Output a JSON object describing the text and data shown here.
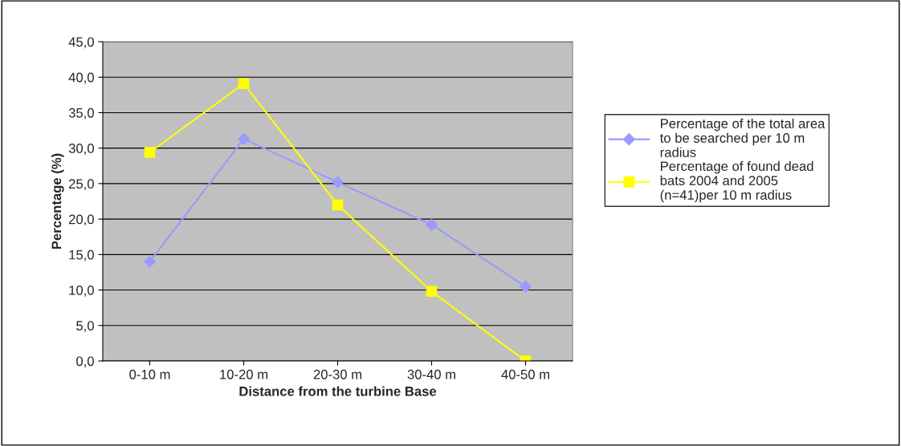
{
  "chart_data": {
    "type": "line",
    "xlabel": "Distance from the turbine Base",
    "ylabel": "Percentage (%)",
    "categories": [
      "0-10 m",
      "10-20 m",
      "20-30 m",
      "30-40 m",
      "40-50 m"
    ],
    "series": [
      {
        "name": "Percentage of the total area\nto be searched per 10 m\nradius",
        "color": "#9999ff",
        "marker": "diamond",
        "values": [
          14.0,
          31.3,
          25.2,
          19.2,
          10.5
        ]
      },
      {
        "name": "Percentage of found dead\nbats 2004 and 2005\n(n=41)per 10 m radius",
        "color": "#ffff00",
        "marker": "square",
        "values": [
          29.4,
          39.1,
          22.0,
          9.8,
          0.0
        ]
      }
    ],
    "ylim": [
      0,
      45
    ],
    "yticks": [
      {
        "value": 0,
        "label": "0,0"
      },
      {
        "value": 5,
        "label": "5,0"
      },
      {
        "value": 10,
        "label": "10,0"
      },
      {
        "value": 15,
        "label": "15,0"
      },
      {
        "value": 20,
        "label": "20,0"
      },
      {
        "value": 25,
        "label": "25,0"
      },
      {
        "value": 30,
        "label": "30,0"
      },
      {
        "value": 35,
        "label": "35,0"
      },
      {
        "value": 40,
        "label": "40,0"
      },
      {
        "value": 45,
        "label": "45,0"
      }
    ],
    "grid": "y",
    "legend": "right",
    "line_style": "solid"
  }
}
